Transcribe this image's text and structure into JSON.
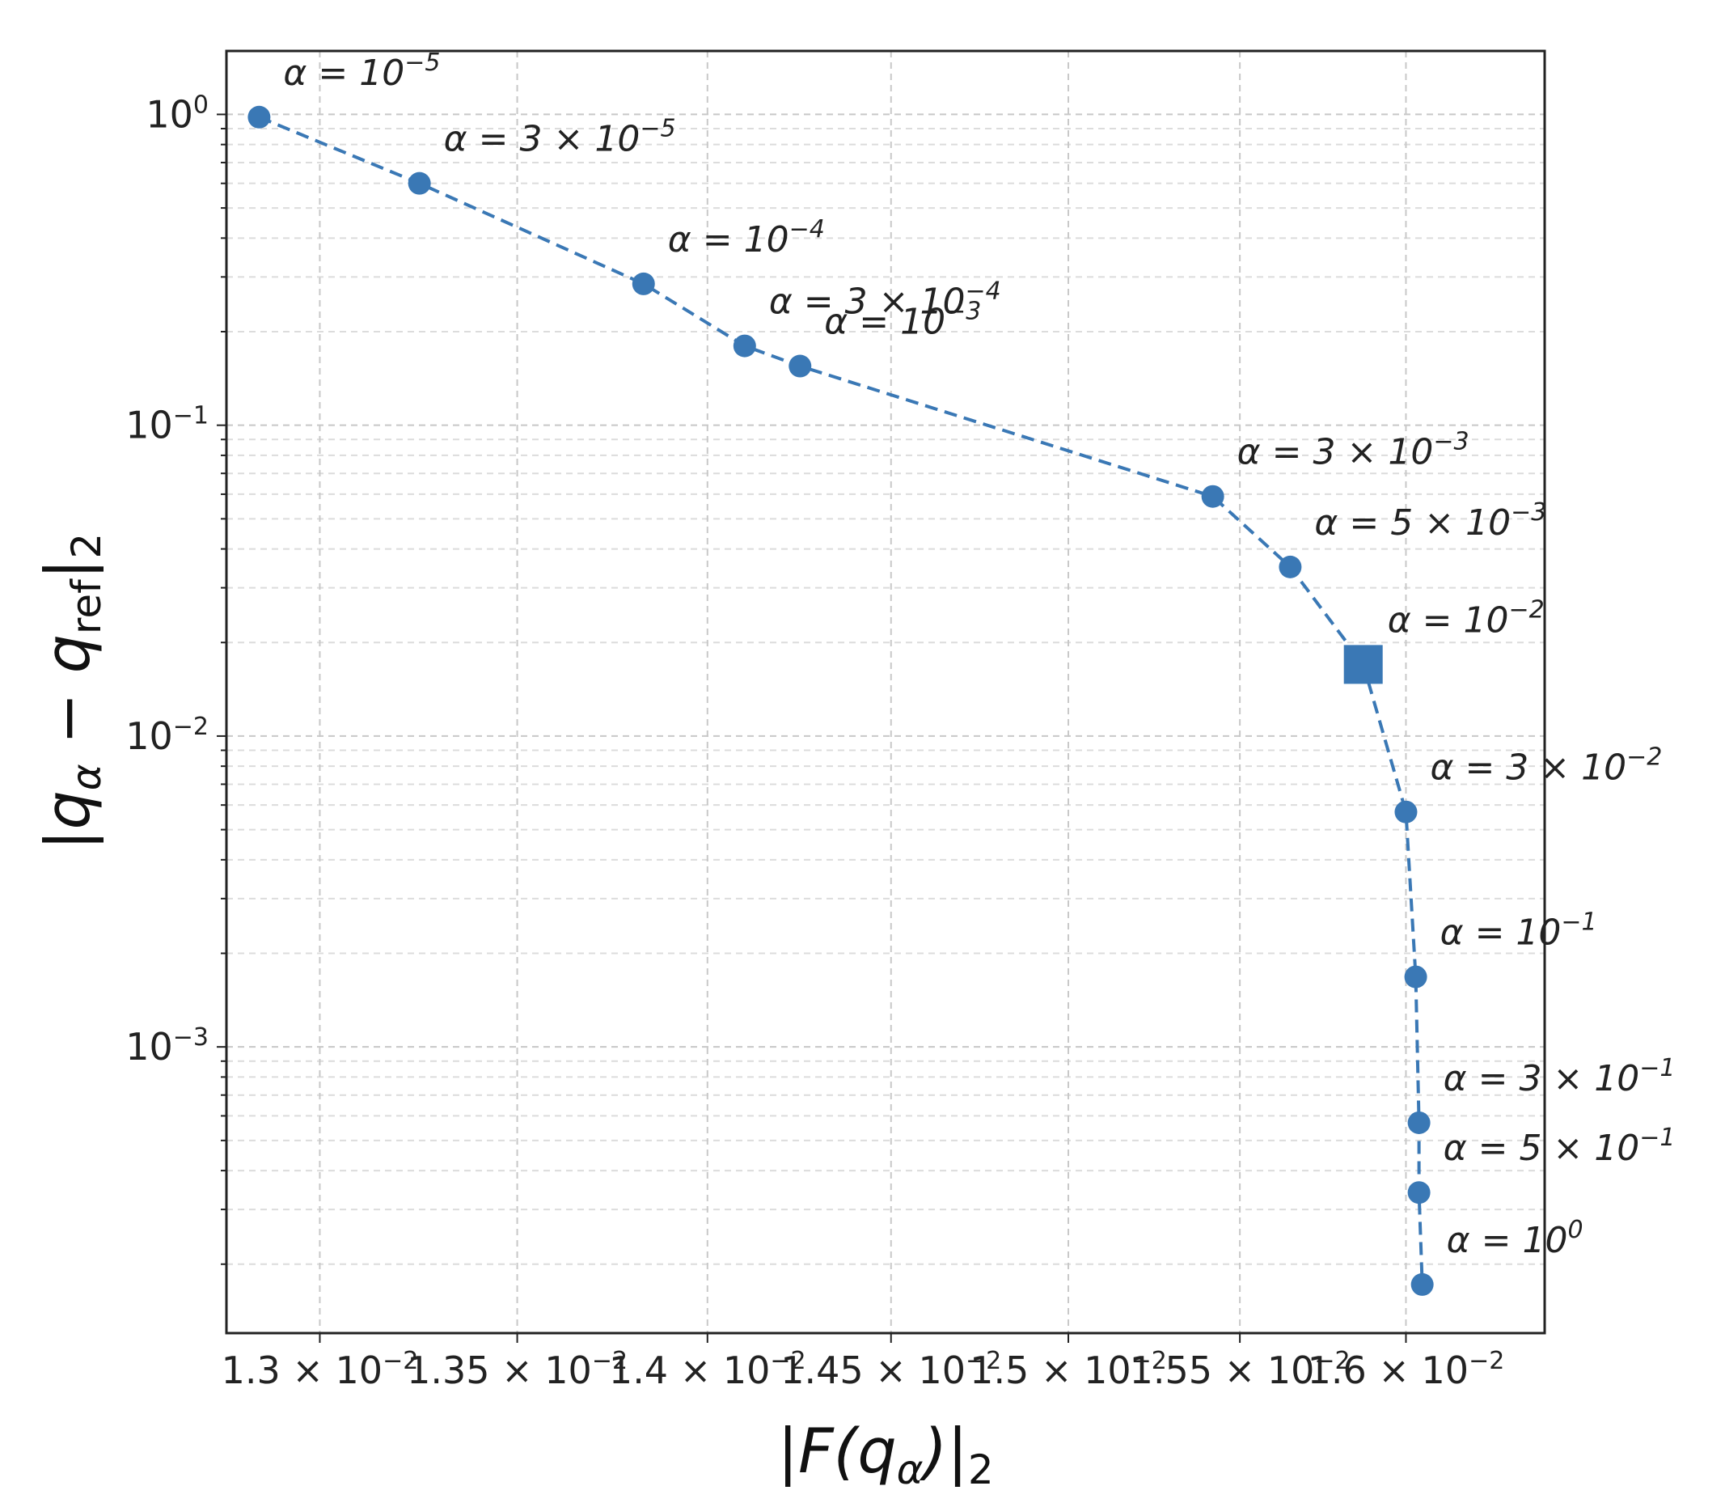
{
  "chart_data": {
    "type": "line",
    "xlabel": "|F(qα)|₂",
    "ylabel": "|qα − qref|₂",
    "x_scale": "log",
    "y_scale": "log",
    "xlim": [
      0.01277,
      0.01643
    ],
    "ylim": [
      0.00012,
      1.6
    ],
    "grid": true,
    "x_ticks": [
      {
        "value": 0.013,
        "label": "1.3 × 10",
        "exp": "−2"
      },
      {
        "value": 0.0135,
        "label": "1.35 × 10",
        "exp": "−2"
      },
      {
        "value": 0.014,
        "label": "1.4 × 10",
        "exp": "−2"
      },
      {
        "value": 0.0145,
        "label": "1.45 × 10",
        "exp": "−2"
      },
      {
        "value": 0.015,
        "label": "1.5 × 10",
        "exp": "−2"
      },
      {
        "value": 0.0155,
        "label": "1.55 × 10",
        "exp": "−2"
      },
      {
        "value": 0.016,
        "label": "1.6 × 10",
        "exp": "−2"
      }
    ],
    "y_ticks": [
      {
        "value": 1,
        "label": "10",
        "exp": "0"
      },
      {
        "value": 0.1,
        "label": "10",
        "exp": "−1"
      },
      {
        "value": 0.01,
        "label": "10",
        "exp": "−2"
      },
      {
        "value": 0.001,
        "label": "10",
        "exp": "−3"
      }
    ],
    "series": [
      {
        "color": "#3a78b5",
        "line_style": "dashed",
        "marker": "circle",
        "points": [
          {
            "x": 0.01285,
            "y": 0.98,
            "label": "α = 10",
            "exp": "−5",
            "dx": 30,
            "dy": -40
          },
          {
            "x": 0.01325,
            "y": 0.6,
            "label": "α = 3 × 10",
            "exp": "−5",
            "dx": 30,
            "dy": -40
          },
          {
            "x": 0.01383,
            "y": 0.285,
            "label": "α = 10",
            "exp": "−4",
            "dx": 30,
            "dy": -40
          },
          {
            "x": 0.0141,
            "y": 0.18,
            "label": "α = 3 × 10",
            "exp": "−4",
            "dx": 30,
            "dy": -40
          },
          {
            "x": 0.01425,
            "y": 0.155,
            "label": "α = 10",
            "exp": "−3",
            "dx": 30,
            "dy": -40
          },
          {
            "x": 0.01542,
            "y": 0.059,
            "label": "α = 3 × 10",
            "exp": "−3",
            "dx": 30,
            "dy": -40
          },
          {
            "x": 0.01565,
            "y": 0.035,
            "label": "α = 5 × 10",
            "exp": "−3",
            "dx": 30,
            "dy": -40
          },
          {
            "x": 0.01587,
            "y": 0.017,
            "label": "α = 10",
            "exp": "−2",
            "dx": 30,
            "dy": -40,
            "marker": "square"
          },
          {
            "x": 0.016,
            "y": 0.0057,
            "label": "α = 3 × 10",
            "exp": "−2",
            "dx": 30,
            "dy": -40
          },
          {
            "x": 0.01603,
            "y": 0.00168,
            "label": "α = 10",
            "exp": "−1",
            "dx": 30,
            "dy": -40
          },
          {
            "x": 0.01604,
            "y": 0.00057,
            "label": "α = 3 × 10",
            "exp": "−1",
            "dx": 30,
            "dy": -40
          },
          {
            "x": 0.01604,
            "y": 0.00034,
            "label": "α = 5 × 10",
            "exp": "−1",
            "dx": 30,
            "dy": -40
          },
          {
            "x": 0.01605,
            "y": 0.000172,
            "label": "α = 10",
            "exp": "0",
            "dx": 30,
            "dy": -40
          }
        ]
      }
    ]
  }
}
